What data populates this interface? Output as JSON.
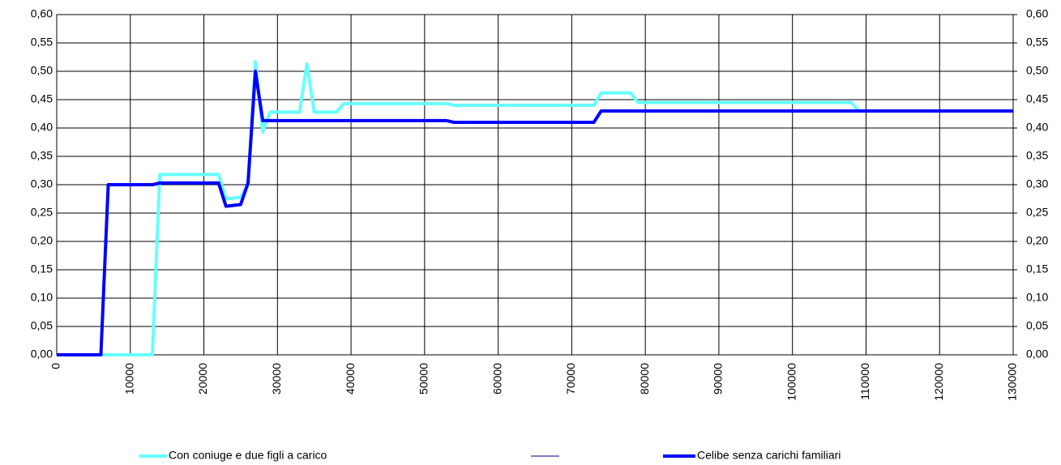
{
  "chart_data": {
    "type": "line",
    "xlim": [
      0,
      130000
    ],
    "xticks": [
      0,
      10000,
      20000,
      30000,
      40000,
      50000,
      60000,
      70000,
      80000,
      90000,
      100000,
      110000,
      120000,
      130000
    ],
    "ylim": [
      0,
      0.6
    ],
    "yticks": [
      {
        "value": 0,
        "label": "0,00"
      },
      {
        "value": 0.05,
        "label": "0,05"
      },
      {
        "value": 0.1,
        "label": "0,10"
      },
      {
        "value": 0.15,
        "label": "0,15"
      },
      {
        "value": 0.2,
        "label": "0,20"
      },
      {
        "value": 0.25,
        "label": "0,25"
      },
      {
        "value": 0.3,
        "label": "0,30"
      },
      {
        "value": 0.35,
        "label": "0,35"
      },
      {
        "value": 0.4,
        "label": "0,40"
      },
      {
        "value": 0.45,
        "label": "0,45"
      },
      {
        "value": 0.5,
        "label": "0,50"
      },
      {
        "value": 0.55,
        "label": "0,55"
      },
      {
        "value": 0.6,
        "label": "0,60"
      }
    ],
    "y2lim": [
      0,
      0.6
    ],
    "y2ticks": [
      {
        "value": 0,
        "label": "0,00"
      },
      {
        "value": 0.05,
        "label": "0,05"
      },
      {
        "value": 0.1,
        "label": "0,10"
      },
      {
        "value": 0.15,
        "label": "0,15"
      },
      {
        "value": 0.2,
        "label": "0,20"
      },
      {
        "value": 0.25,
        "label": "0,25"
      },
      {
        "value": 0.3,
        "label": "0,30"
      },
      {
        "value": 0.35,
        "label": "0,35"
      },
      {
        "value": 0.4,
        "label": "0,40"
      },
      {
        "value": 0.45,
        "label": "0,45"
      },
      {
        "value": 0.5,
        "label": "0,50"
      },
      {
        "value": 0.55,
        "label": "0,55"
      },
      {
        "value": 0.6,
        "label": "0,60"
      }
    ],
    "grid": true,
    "series": [
      {
        "name": "Con coniuge e due figli a carico",
        "color": "#66ffff",
        "x": [
          0,
          13000,
          14000,
          22000,
          23000,
          25000,
          26000,
          27000,
          28000,
          29000,
          33000,
          34000,
          35000,
          38000,
          39000,
          53000,
          54000,
          73000,
          74000,
          78000,
          79000,
          108000,
          109000,
          130000
        ],
        "values": [
          0,
          0,
          0.318,
          0.318,
          0.275,
          0.278,
          0.3,
          0.517,
          0.393,
          0.428,
          0.428,
          0.513,
          0.428,
          0.428,
          0.443,
          0.443,
          0.44,
          0.44,
          0.462,
          0.462,
          0.445,
          0.445,
          0.43,
          0.43
        ]
      },
      {
        "name": "Celibe senza carichi familiari",
        "color": "#0000ff",
        "x": [
          0,
          6000,
          7000,
          13000,
          14000,
          22000,
          23000,
          25000,
          26000,
          27000,
          28000,
          53000,
          54000,
          73000,
          74000,
          130000
        ],
        "values": [
          0,
          0,
          0.3,
          0.3,
          0.303,
          0.303,
          0.262,
          0.265,
          0.303,
          0.5,
          0.413,
          0.413,
          0.41,
          0.41,
          0.43,
          0.43
        ]
      }
    ]
  }
}
